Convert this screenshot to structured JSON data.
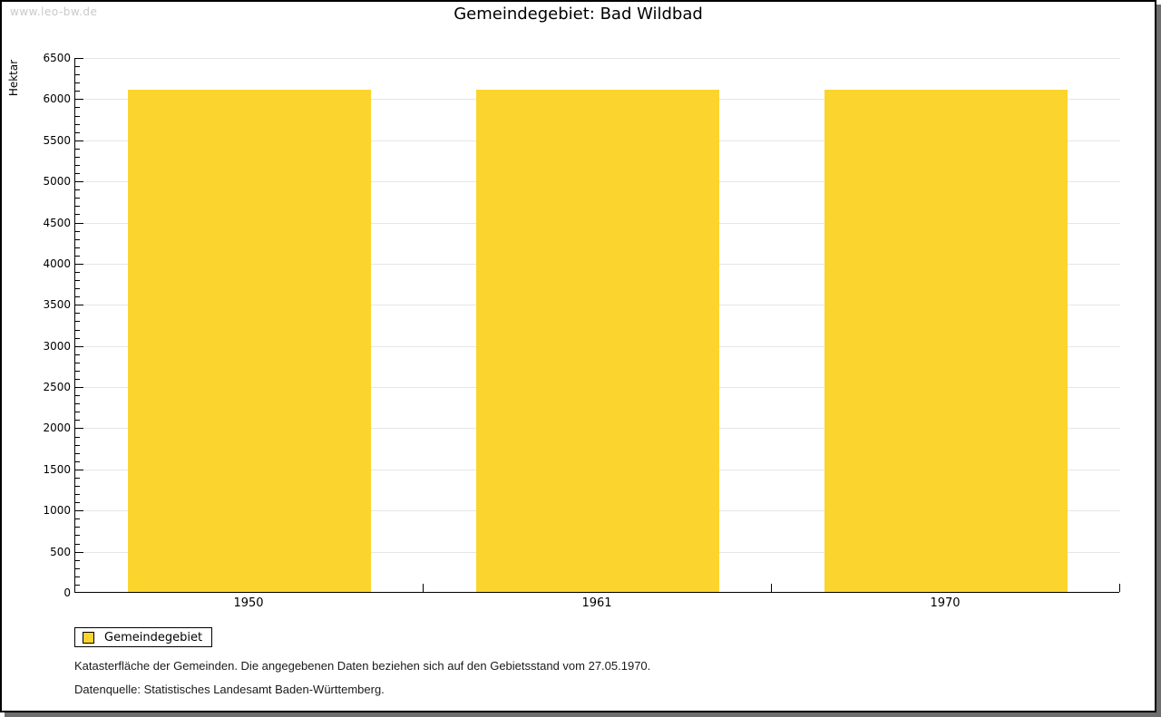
{
  "watermark": "www.leo-bw.de",
  "title": "Gemeindegebiet: Bad Wildbad",
  "chart_data": {
    "type": "bar",
    "title": "Gemeindegebiet: Bad Wildbad",
    "xlabel": "",
    "ylabel": "Hektar",
    "categories": [
      "1950",
      "1961",
      "1970"
    ],
    "series": [
      {
        "name": "Gemeindegebiet",
        "values": [
          6100,
          6100,
          6100
        ]
      }
    ],
    "ylim": [
      0,
      6500
    ],
    "y_major_step": 500,
    "y_minor_step": 100,
    "y_tick_labels": [
      "0",
      "500",
      "1000",
      "1500",
      "2000",
      "2500",
      "3000",
      "3500",
      "4000",
      "4500",
      "5000",
      "5500",
      "6000",
      "6500"
    ],
    "grid": "horizontal-major",
    "legend_position": "bottom-left",
    "bar_color": "#fcd42e"
  },
  "legend": {
    "items": [
      {
        "label": "Gemeindegebiet",
        "color": "#fcd42e"
      }
    ]
  },
  "footer": {
    "line1": "Katasterfläche der Gemeinden. Die angegebenen Daten beziehen sich auf den Gebietsstand vom 27.05.1970.",
    "line2": "Datenquelle: Statistisches Landesamt Baden-Württemberg."
  },
  "colors": {
    "bar": "#fcd42e",
    "gridline": "#e6e6e6",
    "axis": "#000000",
    "watermark": "#c9c9c9",
    "shadow": "#6e6e6e"
  }
}
